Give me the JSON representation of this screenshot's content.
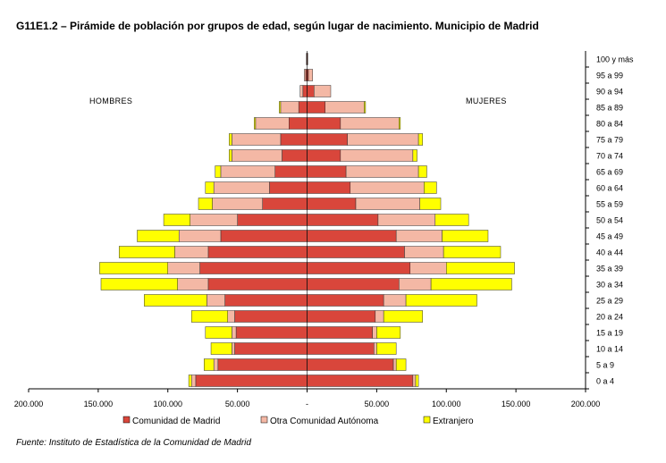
{
  "title": "G11E1.2  – Pirámide de población por grupos de edad, según lugar de nacimiento. Municipio de Madrid",
  "source": "Fuente: Instituto de Estadística de la Comunidad de Madrid",
  "colors": {
    "comunidad": "#d9463b",
    "otra": "#f4b8a5",
    "extranjero": "#ffff00"
  },
  "chart_data": {
    "type": "bar",
    "orientation": "horizontal-pyramid",
    "left_group": "HOMBRES",
    "right_group": "MUJERES",
    "categories": [
      "0 a 4",
      "5 a 9",
      "10 a 14",
      "15 a 19",
      "20 a 24",
      "25 a 29",
      "30 a 34",
      "35 a 39",
      "40 a 44",
      "45 a 49",
      "50 a 54",
      "55 a 59",
      "60 a 64",
      "65 a 69",
      "70 a 74",
      "75 a 79",
      "80 a 84",
      "85 a 89",
      "90 a 94",
      "95 a 99",
      "100 y más"
    ],
    "xlim": [
      -200000,
      200000
    ],
    "x_ticks": [
      -200000,
      -150000,
      -100000,
      -50000,
      0,
      50000,
      100000,
      150000,
      200000
    ],
    "x_tick_labels": [
      "200.000",
      "150.000",
      "100.000",
      "50.000",
      "-",
      "50.000",
      "100.000",
      "150.000",
      "200.000"
    ],
    "legend": [
      "Comunidad de Madrid",
      "Otra Comunidad Autónoma",
      "Extranjero"
    ],
    "legend_position": "bottom",
    "series": {
      "hombres": [
        {
          "name": "Comunidad de Madrid",
          "values": [
            80000,
            64000,
            52000,
            51000,
            52000,
            59000,
            71000,
            77000,
            71000,
            62000,
            50000,
            32000,
            27000,
            23000,
            18000,
            19000,
            13000,
            6000,
            3000,
            1000,
            500
          ]
        },
        {
          "name": "Otra Comunidad Autónoma",
          "values": [
            3000,
            3000,
            2000,
            3000,
            5000,
            13000,
            22000,
            23000,
            24000,
            30000,
            34000,
            36000,
            40000,
            39000,
            36000,
            35000,
            24000,
            13000,
            2000,
            1000,
            0
          ]
        },
        {
          "name": "Extranjero",
          "values": [
            2000,
            7000,
            15000,
            19000,
            26000,
            45000,
            55000,
            49000,
            40000,
            30000,
            19000,
            10000,
            6000,
            4000,
            2000,
            2000,
            1000,
            1000,
            0,
            0,
            0
          ]
        }
      ],
      "mujeres": [
        {
          "name": "Comunidad de Madrid",
          "values": [
            76000,
            62000,
            48000,
            47000,
            49000,
            55000,
            66000,
            74000,
            70000,
            64000,
            51000,
            35000,
            31000,
            28000,
            24000,
            29000,
            24000,
            13000,
            5000,
            1000,
            500
          ]
        },
        {
          "name": "Otra Comunidad Autónoma",
          "values": [
            2000,
            2000,
            2000,
            3000,
            6000,
            16000,
            23000,
            26000,
            28000,
            33000,
            41000,
            46000,
            53000,
            52000,
            52000,
            51000,
            42000,
            28000,
            12000,
            3000,
            0
          ]
        },
        {
          "name": "Extranjero",
          "values": [
            2000,
            7000,
            14000,
            17000,
            28000,
            51000,
            58000,
            49000,
            41000,
            33000,
            24000,
            15000,
            9000,
            6000,
            3000,
            3000,
            1000,
            1000,
            0,
            0,
            0
          ]
        }
      ]
    }
  }
}
